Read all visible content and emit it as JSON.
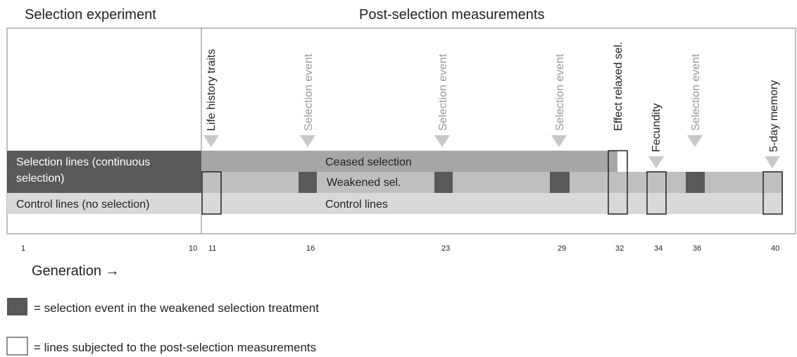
{
  "headers": {
    "left": "Selection experiment",
    "right": "Post-selection measurements"
  },
  "lanes": {
    "selection_line1": "Selection lines (continuous",
    "selection_line2": "selection)",
    "control": "Control lines (no selection)"
  },
  "bands": {
    "ceased": "Ceased selection",
    "weakened": "Weakened sel.",
    "control": "Control lines"
  },
  "events": [
    {
      "label": "Life history traits",
      "style": "dark",
      "generation": "11"
    },
    {
      "label": "Selection event",
      "style": "gray",
      "generation": "16"
    },
    {
      "label": "Selection event",
      "style": "gray",
      "generation": "23"
    },
    {
      "label": "Selection event",
      "style": "gray",
      "generation": "29"
    },
    {
      "label": "Effect relaxed sel.",
      "style": "dark",
      "generation": "32"
    },
    {
      "label": "Fecundity",
      "style": "dark",
      "generation": "34"
    },
    {
      "label": "Selection event",
      "style": "gray",
      "generation": "36"
    },
    {
      "label": "5-day memory",
      "style": "dark",
      "generation": "40"
    }
  ],
  "generations": [
    "1",
    "10",
    "11",
    "16",
    "23",
    "29",
    "32",
    "34",
    "36",
    "40"
  ],
  "axis_title": "Generation →",
  "legend": {
    "dark_box": "= selection event in the weakened selection treatment",
    "open_box": "= lines subjected to the post-selection measurements"
  },
  "colors": {
    "selection_lane": "#595959",
    "ceased_band": "#a6a6a6",
    "weakened_band": "#bfbfbf",
    "control_band": "#d9d9d9",
    "selection_event_box": "#595959",
    "arrow": "#c8c8c8",
    "border": "#7f7f7f"
  }
}
